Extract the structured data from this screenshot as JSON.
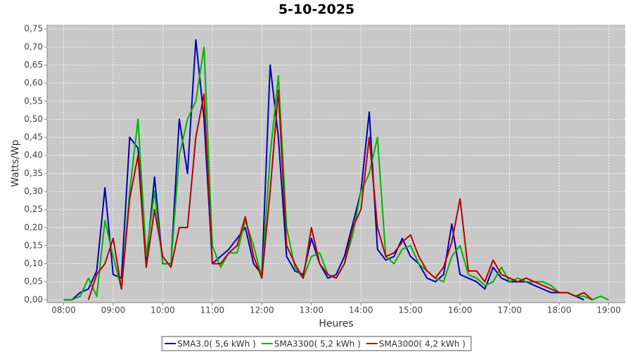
{
  "chart_data": {
    "type": "line",
    "title": "5-10-2025",
    "x_label": "Heures",
    "y_label": "Watts/Wp",
    "x": [
      "08:00",
      "08:10",
      "08:20",
      "08:30",
      "08:40",
      "08:50",
      "09:00",
      "09:10",
      "09:20",
      "09:30",
      "09:40",
      "09:50",
      "10:00",
      "10:10",
      "10:20",
      "10:30",
      "10:40",
      "10:50",
      "11:00",
      "11:10",
      "11:20",
      "11:30",
      "11:40",
      "11:50",
      "12:00",
      "12:10",
      "12:20",
      "12:30",
      "12:40",
      "12:50",
      "13:00",
      "13:10",
      "13:20",
      "13:30",
      "13:40",
      "13:50",
      "14:00",
      "14:10",
      "14:20",
      "14:30",
      "14:40",
      "14:50",
      "15:00",
      "15:10",
      "15:20",
      "15:30",
      "15:40",
      "15:50",
      "16:00",
      "16:10",
      "16:20",
      "16:30",
      "16:40",
      "16:50",
      "17:00",
      "17:10",
      "17:20",
      "17:30",
      "17:40",
      "17:50",
      "18:00",
      "18:10",
      "18:20",
      "18:30",
      "18:40",
      "18:50",
      "19:00"
    ],
    "series": [
      {
        "name": "SMA3.0( 5,6 kWh )",
        "color": "#0000b4",
        "values": [
          0,
          0,
          0.02,
          0.03,
          0.08,
          0.31,
          0.07,
          0.06,
          0.45,
          0.42,
          0.1,
          0.34,
          0.1,
          0.1,
          0.5,
          0.35,
          0.72,
          0.5,
          0.1,
          0.12,
          0.14,
          0.17,
          0.2,
          0.1,
          0.07,
          0.65,
          0.45,
          0.12,
          0.08,
          0.07,
          0.17,
          0.1,
          0.06,
          0.07,
          0.12,
          0.21,
          0.3,
          0.52,
          0.14,
          0.11,
          0.12,
          0.17,
          0.12,
          0.1,
          0.06,
          0.05,
          0.07,
          0.21,
          0.07,
          0.06,
          0.05,
          0.03,
          0.09,
          0.06,
          0.05,
          0.05,
          0.05,
          0.04,
          0.03,
          0.02,
          0.02,
          0.02,
          0.01,
          0,
          null,
          null,
          null
        ]
      },
      {
        "name": "SMA3300( 5,2 kWh )",
        "color": "#00b400",
        "values": [
          0,
          0,
          0.01,
          0.06,
          0.01,
          0.22,
          0.12,
          0.03,
          0.3,
          0.5,
          0.12,
          0.3,
          0.1,
          0.1,
          0.4,
          0.5,
          0.55,
          0.7,
          0.15,
          0.09,
          0.13,
          0.13,
          0.22,
          0.15,
          0.06,
          0.4,
          0.62,
          0.2,
          0.09,
          0.06,
          0.12,
          0.13,
          0.07,
          0.06,
          0.1,
          0.18,
          0.3,
          0.35,
          0.45,
          0.12,
          0.1,
          0.14,
          0.15,
          0.1,
          0.08,
          0.06,
          0.05,
          0.12,
          0.15,
          0.07,
          0.06,
          0.04,
          0.05,
          0.09,
          0.05,
          0.06,
          0.05,
          0.05,
          0.05,
          0.04,
          0.02,
          0.02,
          0.01,
          0.01,
          0,
          0.01,
          0
        ]
      },
      {
        "name": "SMA3000( 4,2 kWh )",
        "color": "#b40000",
        "values": [
          null,
          null,
          null,
          0,
          0.07,
          0.1,
          0.17,
          0.03,
          0.28,
          0.4,
          0.09,
          0.25,
          0.12,
          0.09,
          0.2,
          0.2,
          0.45,
          0.57,
          0.1,
          0.1,
          0.13,
          0.15,
          0.23,
          0.12,
          0.06,
          0.3,
          0.58,
          0.15,
          0.1,
          0.06,
          0.2,
          0.1,
          0.07,
          0.06,
          0.1,
          0.2,
          0.25,
          0.45,
          0.2,
          0.12,
          0.13,
          0.16,
          0.18,
          0.12,
          0.08,
          0.06,
          0.09,
          0.16,
          0.28,
          0.08,
          0.08,
          0.05,
          0.11,
          0.07,
          0.06,
          0.05,
          0.06,
          0.05,
          0.04,
          0.03,
          0.02,
          0.02,
          0.01,
          0.02,
          0,
          null,
          null
        ]
      }
    ],
    "xlim": [
      "07:40",
      "19:20"
    ],
    "xticks": [
      "08:00",
      "09:00",
      "10:00",
      "11:00",
      "12:00",
      "13:00",
      "14:00",
      "15:00",
      "16:00",
      "17:00",
      "18:00",
      "19:00"
    ],
    "ylim": [
      -0.008,
      0.762
    ],
    "yticks": [
      {
        "value": 0,
        "label": "0,00"
      },
      {
        "value": 0.05,
        "label": "0,05"
      },
      {
        "value": 0.1,
        "label": "0,10"
      },
      {
        "value": 0.15,
        "label": "0,15"
      },
      {
        "value": 0.2,
        "label": "0,20"
      },
      {
        "value": 0.25,
        "label": "0,25"
      },
      {
        "value": 0.3,
        "label": "0,30"
      },
      {
        "value": 0.35,
        "label": "0,35"
      },
      {
        "value": 0.4,
        "label": "0,40"
      },
      {
        "value": 0.45,
        "label": "0,45"
      },
      {
        "value": 0.5,
        "label": "0,50"
      },
      {
        "value": 0.55,
        "label": "0,55"
      },
      {
        "value": 0.6,
        "label": "0,60"
      },
      {
        "value": 0.65,
        "label": "0,65"
      },
      {
        "value": 0.7,
        "label": "0,70"
      },
      {
        "value": 0.75,
        "label": "0,75"
      }
    ],
    "grid": true,
    "legend": "bottom"
  }
}
